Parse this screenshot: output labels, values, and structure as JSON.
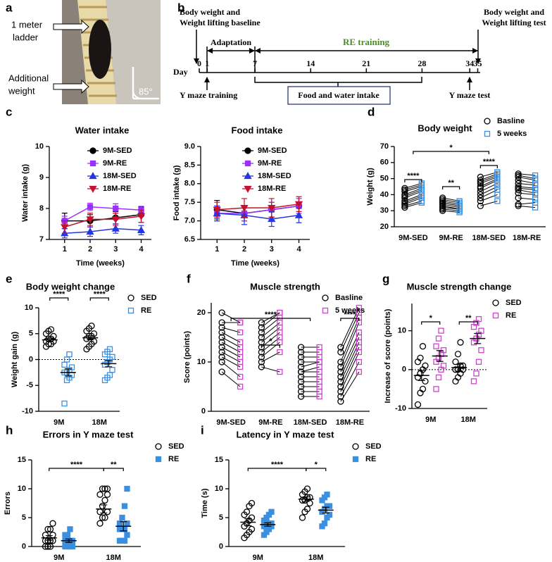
{
  "photo": {
    "panel": "a",
    "labels": [
      "1 meter",
      "ladder",
      "Additional",
      "weight",
      "85°"
    ]
  },
  "timeline": {
    "panel": "b",
    "baseline": [
      "Body weight and",
      "Weight lifting baseline"
    ],
    "test": [
      "Body weight and",
      "Weight lifting test"
    ],
    "adaptation": "Adaptation",
    "re_training": "RE training",
    "day_label": "Day",
    "days": [
      0,
      1,
      7,
      14,
      21,
      28,
      34,
      35
    ],
    "y_maze_training": "Y maze training",
    "food_water": "Food and water intake",
    "y_maze_test": "Y maze test"
  },
  "chart_data": [
    {
      "type": "line",
      "panel": "c",
      "title": "Water intake",
      "x_label": "Time (weeks)",
      "y_label": "Water intake (g)",
      "x": [
        1,
        2,
        3,
        4
      ],
      "xlim": [
        0.4,
        4.4
      ],
      "xticks": [
        1,
        2,
        3,
        4
      ],
      "ylim": [
        7,
        10
      ],
      "yticks": [
        7,
        8,
        9,
        10
      ],
      "series": [
        {
          "name": "9M-SED",
          "color": "#000000",
          "marker": "circle-filled",
          "values": [
            7.6,
            7.6,
            7.7,
            7.8
          ],
          "errors": [
            0.25,
            0.2,
            0.2,
            0.25
          ]
        },
        {
          "name": "9M-RE",
          "color": "#9b30ff",
          "marker": "square-filled",
          "values": [
            7.6,
            8.05,
            8.0,
            7.95
          ],
          "errors": [
            0.15,
            0.12,
            0.15,
            0.12
          ]
        },
        {
          "name": "18M-SED",
          "color": "#2436e0",
          "marker": "triangle-filled",
          "values": [
            7.2,
            7.25,
            7.35,
            7.3
          ],
          "errors": [
            0.15,
            0.15,
            0.15,
            0.15
          ]
        },
        {
          "name": "18M-RE",
          "color": "#c8102e",
          "marker": "triangle-down-filled",
          "values": [
            7.4,
            7.65,
            7.65,
            7.75
          ],
          "errors": [
            0.2,
            0.2,
            0.2,
            0.2
          ]
        }
      ]
    },
    {
      "type": "line",
      "title": "Food intake",
      "x_label": "Time (weeks)",
      "y_label": "Food intake (g)",
      "x": [
        1,
        2,
        3,
        4
      ],
      "xlim": [
        0.4,
        4.4
      ],
      "xticks": [
        1,
        2,
        3,
        4
      ],
      "ylim": [
        6.5,
        9
      ],
      "yticks": [
        6.5,
        {
          "value": 7,
          "label": "7.0"
        },
        7.5,
        {
          "value": 8,
          "label": "8.0"
        },
        8.5,
        {
          "value": 9,
          "label": "9.0"
        }
      ],
      "series": [
        {
          "name": "9M-SED",
          "color": "#000000",
          "marker": "circle-filled",
          "values": [
            7.3,
            7.2,
            7.3,
            7.4
          ],
          "errors": [
            0.25,
            0.2,
            0.2,
            0.2
          ]
        },
        {
          "name": "9M-RE",
          "color": "#9b30ff",
          "marker": "square-filled",
          "values": [
            7.2,
            7.2,
            7.3,
            7.4
          ],
          "errors": [
            0.2,
            0.2,
            0.2,
            0.2
          ]
        },
        {
          "name": "18M-SED",
          "color": "#2436e0",
          "marker": "triangle-filled",
          "values": [
            7.2,
            7.15,
            7.05,
            7.15
          ],
          "errors": [
            0.2,
            0.25,
            0.2,
            0.2
          ]
        },
        {
          "name": "18M-RE",
          "color": "#c8102e",
          "marker": "triangle-down-filled",
          "values": [
            7.3,
            7.35,
            7.35,
            7.45
          ],
          "errors": [
            0.2,
            0.25,
            0.25,
            0.2
          ]
        }
      ]
    },
    {
      "type": "paired",
      "panel": "d",
      "title": "Body weight",
      "y_label": "Weight (g)",
      "categories": [
        "9M-SED",
        "9M-RE",
        "18M-SED",
        "18M-RE"
      ],
      "ylim": [
        20,
        70
      ],
      "yticks": [
        20,
        30,
        40,
        50,
        60,
        70
      ],
      "annotations": [
        "****",
        "**",
        "****",
        "*"
      ],
      "series": [
        {
          "name": "Basline",
          "color": "#000000",
          "marker": "circle",
          "values": [
            [
              32,
              33,
              34,
              35,
              36,
              38,
              39,
              40,
              42,
              43,
              44
            ],
            [
              30,
              31,
              32,
              33,
              34,
              35,
              35,
              36,
              37,
              38
            ],
            [
              33,
              36,
              38,
              40,
              42,
              44,
              45,
              47,
              48,
              49,
              51
            ],
            [
              33,
              34,
              38,
              41,
              43,
              44,
              45,
              47,
              49,
              51,
              52,
              53
            ]
          ]
        },
        {
          "name": "5 weeks",
          "color": "#3a8fe0",
          "marker": "square",
          "values": [
            [
              35,
              36,
              38,
              39,
              40,
              42,
              43,
              44,
              45,
              46,
              47
            ],
            [
              29,
              30,
              31,
              31,
              32,
              33,
              33,
              34,
              35,
              36
            ],
            [
              36,
              40,
              43,
              45,
              47,
              49,
              50,
              51,
              52,
              53,
              54
            ],
            [
              32,
              35,
              37,
              40,
              41,
              43,
              44,
              46,
              47,
              49,
              50,
              52
            ]
          ]
        }
      ]
    },
    {
      "type": "dot",
      "panel": "e",
      "title": "Body weight change",
      "y_label": "Weight gain (g)",
      "categories": [
        "9M",
        "18M"
      ],
      "ylim": [
        -10,
        10
      ],
      "yticks": [
        -10,
        -5,
        0,
        5,
        10
      ],
      "zero_line": true,
      "annotations": [
        "****",
        "****"
      ],
      "series": [
        {
          "name": "SED",
          "color": "#000000",
          "marker": "circle",
          "values": [
            [
              2.5,
              3,
              3,
              3.5,
              3.5,
              4,
              4,
              4.5,
              5,
              5.5,
              5.8
            ],
            [
              2,
              2.5,
              3,
              3.5,
              4,
              4.5,
              4.5,
              5,
              5.5,
              6,
              6.5
            ]
          ],
          "means": [
            3.8,
            4.2
          ],
          "errors": [
            0.35,
            0.4
          ]
        },
        {
          "name": "RE",
          "color": "#3a8fe0",
          "marker": "square",
          "values": [
            [
              -8.5,
              -4,
              -3.5,
              -3,
              -2.5,
              -2.5,
              -2,
              -1.5,
              -1,
              0,
              1
            ],
            [
              -4,
              -3.5,
              -3,
              -2,
              -1,
              -0.5,
              0,
              0.5,
              1,
              1.5,
              2
            ]
          ],
          "means": [
            -2.5,
            -0.8
          ],
          "errors": [
            0.7,
            0.6
          ]
        }
      ]
    },
    {
      "type": "paired",
      "panel": "f",
      "title": "Muscle strength",
      "y_label": "Score (points)",
      "categories": [
        "9M-SED",
        "9M-RE",
        "18M-SED",
        "18M-RE"
      ],
      "ylim": [
        0,
        22
      ],
      "yticks": [
        0,
        10,
        20
      ],
      "annotations": [
        "****",
        "*",
        "****"
      ],
      "series": [
        {
          "name": "Basline",
          "color": "#000000",
          "marker": "circle",
          "values": [
            [
              8,
              10,
              11,
              12,
              13,
              14,
              15,
              16,
              17,
              18,
              20
            ],
            [
              9,
              10,
              11,
              12,
              13,
              14,
              15,
              16,
              17,
              18
            ],
            [
              3,
              4,
              5,
              6,
              7,
              8,
              8,
              9,
              10,
              11,
              12,
              13
            ],
            [
              2,
              3,
              4,
              5,
              6,
              7,
              8,
              9,
              10,
              12,
              13
            ]
          ]
        },
        {
          "name": "5 weeks",
          "color": "#cc44cc",
          "marker": "square",
          "values": [
            [
              5,
              7,
              9,
              10,
              11,
              12,
              13,
              14,
              16,
              18,
              18
            ],
            [
              8,
              12,
              14,
              15,
              16,
              17,
              18,
              19,
              20,
              20
            ],
            [
              3,
              4,
              5,
              6,
              7,
              8,
              9,
              10,
              10,
              11,
              12,
              13
            ],
            [
              8,
              10,
              12,
              13,
              14,
              15,
              16,
              18,
              19,
              20,
              21
            ]
          ]
        }
      ]
    },
    {
      "type": "dot",
      "panel": "g",
      "title": "Muscle strength change",
      "y_label": "Increase of score (points)",
      "categories": [
        "9M",
        "18M"
      ],
      "ylim": [
        -10,
        17
      ],
      "yticks": [
        -10,
        0,
        10
      ],
      "zero_line": true,
      "annotations": [
        "*",
        "**"
      ],
      "series": [
        {
          "name": "SED",
          "color": "#000000",
          "marker": "circle",
          "values": [
            [
              -9,
              -6,
              -5,
              -3,
              -2,
              -1,
              0,
              1,
              2,
              3,
              6
            ],
            [
              -3,
              -2,
              -1,
              0,
              0,
              0,
              1,
              1,
              2,
              4,
              7
            ]
          ],
          "means": [
            -1.5,
            0.5
          ],
          "errors": [
            1.3,
            0.9
          ]
        },
        {
          "name": "RE",
          "color": "#cc44cc",
          "marker": "square",
          "values": [
            [
              -5,
              -2,
              0,
              1,
              2,
              3,
              4,
              5,
              6,
              8,
              10
            ],
            [
              -3,
              -1,
              2,
              5,
              7,
              8,
              9,
              10,
              11,
              12,
              13
            ]
          ],
          "means": [
            3.5,
            8
          ],
          "errors": [
            1.4,
            1.3
          ]
        }
      ]
    },
    {
      "type": "dot",
      "panel": "h",
      "title": "Errors in Y maze test",
      "y_label": "Errors",
      "categories": [
        "9M",
        "18M"
      ],
      "ylim": [
        0,
        15
      ],
      "yticks": [
        0,
        5,
        10,
        15
      ],
      "annotations": [
        "****",
        "**"
      ],
      "series": [
        {
          "name": "SED",
          "color": "#000000",
          "marker": "circle",
          "values": [
            [
              0,
              0,
              0,
              1,
              1,
              1,
              1,
              2,
              2,
              3,
              3,
              4
            ],
            [
              4,
              5,
              5,
              6,
              6,
              7,
              8,
              9,
              9,
              10,
              10,
              10
            ]
          ],
          "means": [
            1.5,
            6.5
          ],
          "errors": [
            0.4,
            0.7
          ]
        },
        {
          "name": "RE",
          "color": "#3a8fe0",
          "marker": "square-filled",
          "values": [
            [
              0,
              0,
              0,
              0,
              1,
              1,
              1,
              1,
              2,
              2,
              3
            ],
            [
              1,
              1,
              1,
              2,
              3,
              3,
              3,
              4,
              4,
              5,
              7,
              10
            ]
          ],
          "means": [
            1.0,
            3.5
          ],
          "errors": [
            0.3,
            0.8
          ]
        }
      ]
    },
    {
      "type": "dot",
      "panel": "i",
      "title": "Latency in Y maze test",
      "y_label": "Time (s)",
      "categories": [
        "9M",
        "18M"
      ],
      "ylim": [
        0,
        15
      ],
      "yticks": [
        0,
        5,
        10,
        15
      ],
      "annotations": [
        "****",
        "*"
      ],
      "series": [
        {
          "name": "SED",
          "color": "#000000",
          "marker": "circle",
          "values": [
            [
              1.5,
              2,
              2.5,
              3,
              3.5,
              4,
              4.5,
              5,
              5.5,
              6,
              7,
              7.5
            ],
            [
              5,
              6,
              6.5,
              7.5,
              8,
              8,
              8.5,
              8.5,
              9,
              9.5,
              10
            ]
          ],
          "means": [
            4.2,
            8.2
          ],
          "errors": [
            0.6,
            0.4
          ]
        },
        {
          "name": "RE",
          "color": "#3a8fe0",
          "marker": "square-filled",
          "values": [
            [
              2,
              2.5,
              3,
              3.5,
              3.5,
              4,
              4,
              4,
              4.5,
              5,
              5.5,
              6
            ],
            [
              3.5,
              4,
              5,
              5.5,
              6,
              6.5,
              7,
              7,
              8,
              8.5,
              9
            ]
          ],
          "means": [
            3.8,
            6.3
          ],
          "errors": [
            0.3,
            0.5
          ]
        }
      ]
    }
  ]
}
